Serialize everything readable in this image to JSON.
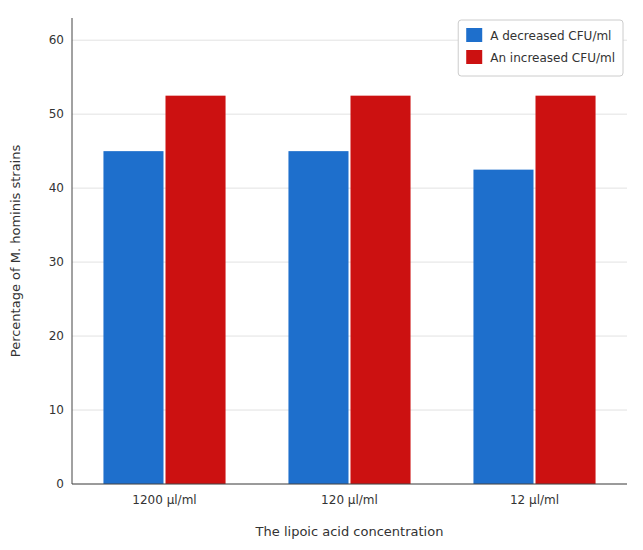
{
  "chart_data": {
    "type": "bar",
    "categories": [
      "1200 μl/ml",
      "120 μl/ml",
      "12 μl/ml"
    ],
    "series": [
      {
        "name": "A decreased CFU/ml",
        "color": "#1E6FCC",
        "values": [
          45.0,
          45.0,
          42.5
        ]
      },
      {
        "name": "An increased CFU/ml",
        "color": "#CC1111",
        "values": [
          52.5,
          52.5,
          52.5
        ]
      }
    ],
    "xlabel": "The lipoic acid concentration",
    "ylabel": "Percentage of M. hominis strains",
    "ylim": [
      0,
      63
    ],
    "yticks": [
      0,
      10,
      20,
      30,
      40,
      50,
      60
    ],
    "grid": true,
    "legend": "upper right"
  }
}
